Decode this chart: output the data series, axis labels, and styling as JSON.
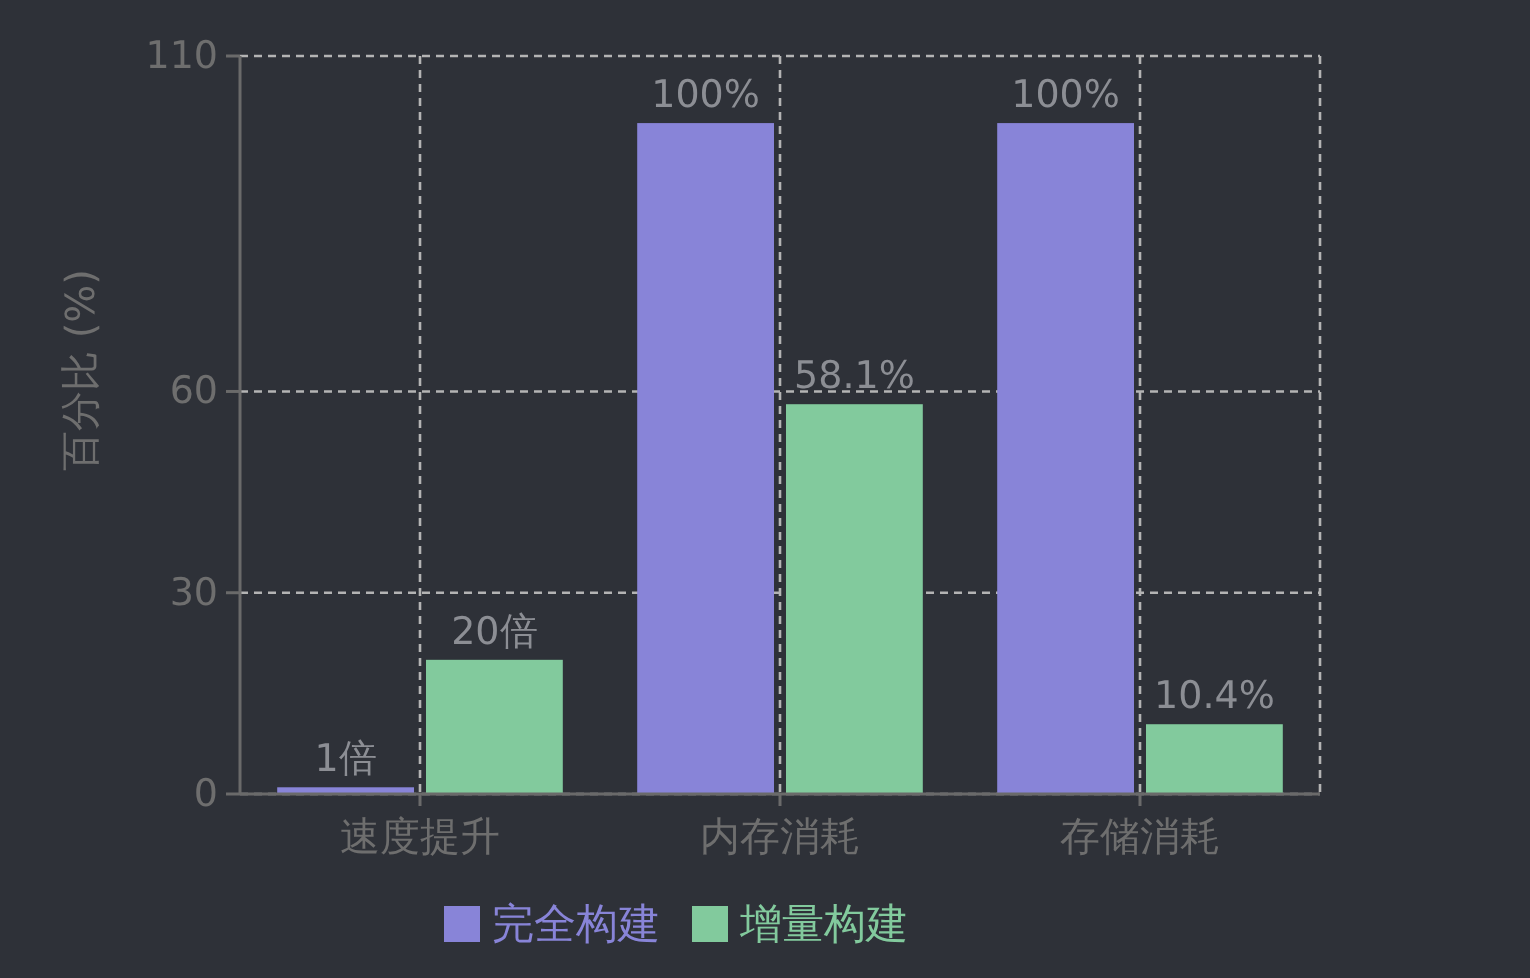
{
  "chart_data": {
    "type": "bar",
    "ylabel": "百分比 (%)",
    "categories": [
      "速度提升",
      "内存消耗",
      "存储消耗"
    ],
    "series": [
      {
        "name": "完全构建",
        "color": "#8884d8",
        "values": [
          1,
          100,
          100
        ],
        "value_labels": [
          "1倍",
          "100%",
          "100%"
        ]
      },
      {
        "name": "增量构建",
        "color": "#82ca9d",
        "values": [
          20,
          58.1,
          10.4
        ],
        "value_labels": [
          "20倍",
          "58.1%",
          "10.4%"
        ]
      }
    ],
    "ylim": [
      0,
      110
    ],
    "yticks": [
      0,
      30,
      60,
      110
    ],
    "grid": true,
    "legend": "bottom"
  }
}
